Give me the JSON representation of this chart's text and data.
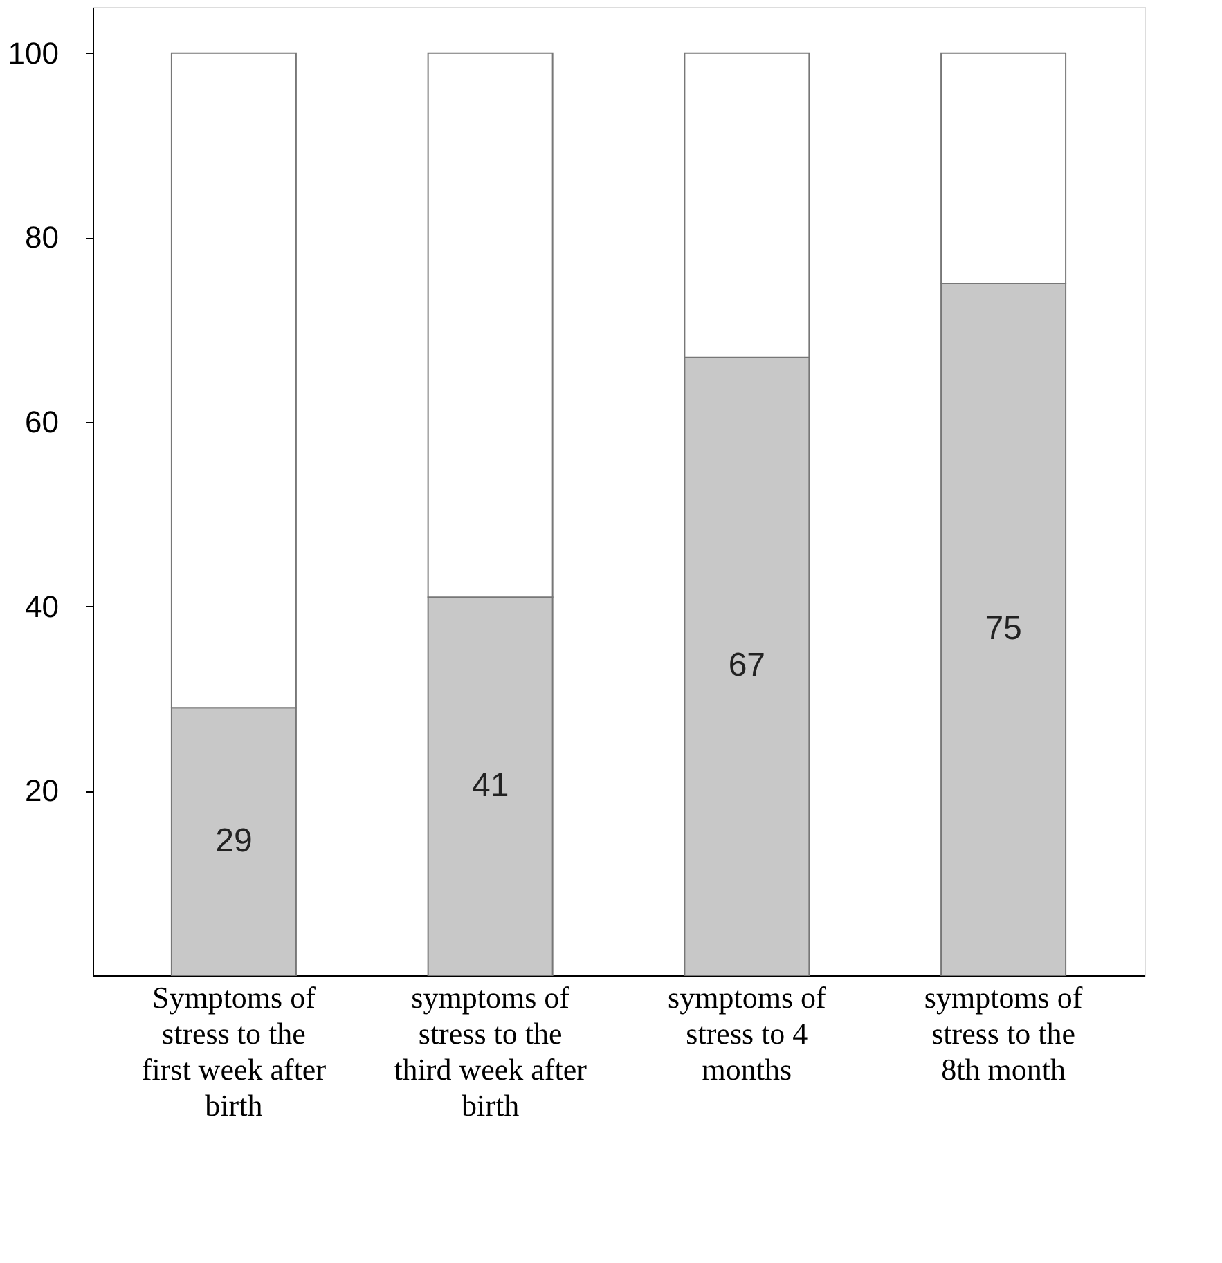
{
  "chart_data": {
    "type": "bar",
    "stacked": true,
    "categories": [
      "Symptoms of stress to the first week after birth",
      "symptoms of stress to the third week after birth",
      "symptoms of stress to 4 months",
      "symptoms of stress to the 8th month"
    ],
    "series": [
      {
        "color": "#c8c8c8",
        "values": [
          29,
          41,
          67,
          75
        ],
        "value_labels": [
          "29",
          "41",
          "67",
          "75"
        ]
      },
      {
        "color": "#ffffff",
        "values": [
          71,
          59,
          33,
          25
        ]
      }
    ],
    "ylim": [
      0,
      105
    ],
    "yticks": [
      20,
      40,
      60,
      80,
      100
    ],
    "grid": false,
    "legend": false
  }
}
